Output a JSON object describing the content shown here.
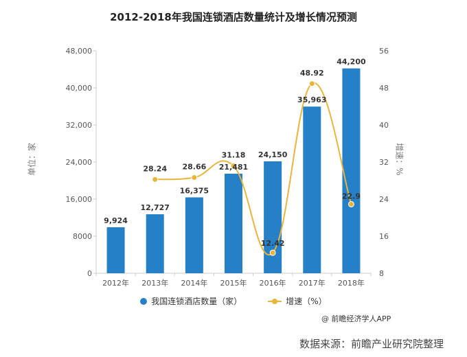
{
  "title": "2012-2018年我国连锁酒店数量统计及增长情况预测",
  "credit": "@ 前瞻经济学人APP",
  "source": "数据来源：前瞻产业研究院整理",
  "colors": {
    "bar": "#2580c8",
    "line": "#e8b43b",
    "axis": "#cccccc",
    "text": "#555555"
  },
  "chart_data": {
    "type": "bar",
    "categories": [
      "2012年",
      "2013年",
      "2014年",
      "2015年",
      "2016年",
      "2017年",
      "2018年"
    ],
    "series": [
      {
        "name": "我国连锁酒店数量（家）",
        "type": "bar",
        "axis": "left",
        "values": [
          9924,
          12727,
          16375,
          21481,
          24150,
          35963,
          44200
        ],
        "labels": [
          "9,924",
          "12,727",
          "16,375",
          "21,481",
          "24,150",
          "35,963",
          "44,200"
        ]
      },
      {
        "name": "增速（%）",
        "type": "line",
        "axis": "right",
        "values": [
          null,
          28.24,
          28.66,
          31.18,
          12.42,
          48.92,
          22.9
        ],
        "labels": [
          "",
          "28.24",
          "28.66",
          "31.18",
          "12.42",
          "48.92",
          "22.9"
        ]
      }
    ],
    "ylabel_left": "单位：家",
    "ylabel_right": "增速：%",
    "ylim_left": [
      0,
      48000
    ],
    "ylim_right": [
      8,
      56
    ],
    "yticks_left": [
      "0",
      "8000",
      "16,000",
      "24,000",
      "32,000",
      "40,000",
      "48,000"
    ],
    "yticks_right": [
      "8",
      "16",
      "24",
      "32",
      "40",
      "48",
      "56"
    ],
    "legend_position": "bottom",
    "grid": false
  }
}
